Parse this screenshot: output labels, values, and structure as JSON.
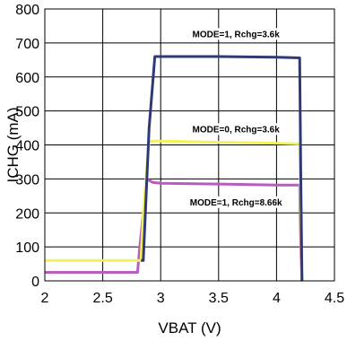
{
  "chart_data": {
    "type": "line",
    "title": "",
    "xlabel": "VBAT (V)",
    "ylabel": "ICHG (mA)",
    "xlim": [
      2,
      4.5
    ],
    "ylim": [
      0,
      800
    ],
    "xticks": [
      "2",
      "2.5",
      "3",
      "3.5",
      "4",
      "4.5"
    ],
    "yticks": [
      "0",
      "100",
      "200",
      "300",
      "400",
      "500",
      "600",
      "700",
      "800"
    ],
    "grid": true,
    "legend": "none",
    "series": [
      {
        "name": "MODE=1, Rchg=3.6k",
        "color": "#2e3a78",
        "x": [
          2.83,
          2.85,
          2.9,
          2.95,
          3.0,
          3.5,
          4.0,
          4.2,
          4.21,
          4.22
        ],
        "y": [
          60,
          60,
          450,
          660,
          660,
          660,
          658,
          656,
          300,
          0
        ]
      },
      {
        "name": "MODE=0, Rchg=3.6k",
        "color": "#f2f25a",
        "x": [
          2.0,
          2.83,
          2.85,
          2.9,
          2.95,
          3.0,
          3.5,
          4.0,
          4.2,
          4.21,
          4.22
        ],
        "y": [
          60,
          60,
          200,
          410,
          412,
          411,
          408,
          405,
          403,
          200,
          0
        ]
      },
      {
        "name": "MODE=1, Rchg=8.66k",
        "color": "#b85cc0",
        "x": [
          2.0,
          2.8,
          2.82,
          2.88,
          2.93,
          3.0,
          3.5,
          4.0,
          4.2,
          4.21,
          4.22
        ],
        "y": [
          25,
          25,
          100,
          300,
          290,
          287,
          285,
          282,
          282,
          100,
          0
        ]
      }
    ],
    "annotations": [
      {
        "text": "MODE=1, Rchg=3.6k",
        "x": 3.65,
        "y": 720
      },
      {
        "text": "MODE=0, Rchg=3.6k",
        "x": 3.65,
        "y": 440
      },
      {
        "text": "MODE=1, Rchg=8.66k",
        "x": 3.65,
        "y": 225
      }
    ]
  }
}
